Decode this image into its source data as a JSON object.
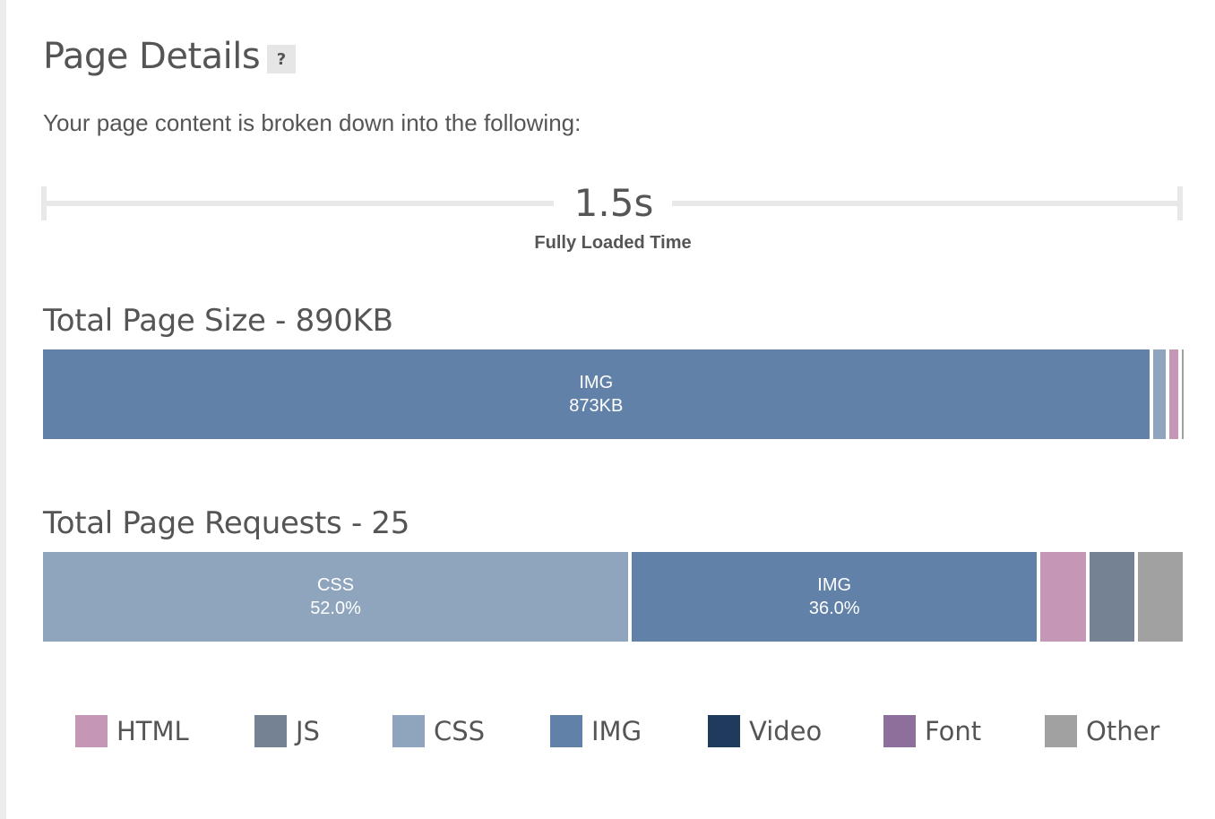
{
  "header": {
    "title": "Page Details",
    "help": "?",
    "intro": "Your page content is broken down into the following:"
  },
  "load_time": {
    "value": "1.5s",
    "label": "Fully Loaded Time"
  },
  "colors": {
    "HTML": "#c596b5",
    "JS": "#758293",
    "CSS": "#8fa5be",
    "IMG": "#6181a8",
    "Video": "#203a5e",
    "Font": "#8e6e9b",
    "Other": "#a1a1a1"
  },
  "chart_data": [
    {
      "type": "bar",
      "title": "Total Page Size - 890KB",
      "unit": "KB",
      "total": 890,
      "segments": [
        {
          "category": "IMG",
          "value": 873,
          "label": "873KB"
        },
        {
          "category": "CSS",
          "value": 10
        },
        {
          "category": "HTML",
          "value": 7
        },
        {
          "category": "Other",
          "value": 1
        }
      ]
    },
    {
      "type": "bar",
      "title": "Total Page Requests - 25",
      "unit": "%",
      "total": 100,
      "segments": [
        {
          "category": "CSS",
          "value": 52.0,
          "label": "52.0%"
        },
        {
          "category": "IMG",
          "value": 36.0,
          "label": "36.0%"
        },
        {
          "category": "HTML",
          "value": 4.0
        },
        {
          "category": "JS",
          "value": 4.0
        },
        {
          "category": "Other",
          "value": 4.0
        }
      ]
    }
  ],
  "legend": [
    "HTML",
    "JS",
    "CSS",
    "IMG",
    "Video",
    "Font",
    "Other"
  ]
}
